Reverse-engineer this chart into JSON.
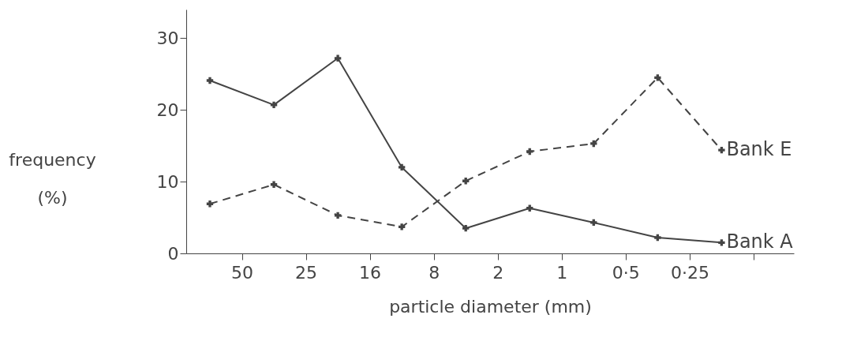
{
  "chart_data": {
    "type": "line",
    "xlabel": "particle diameter (mm)",
    "ylabel": "frequency (%)",
    "categories": [
      null,
      "50",
      null,
      "25",
      null,
      "16",
      null,
      "8",
      null,
      "2",
      null,
      "1",
      null,
      "0·5",
      null,
      "0·25",
      null,
      null
    ],
    "ylim": [
      0,
      34
    ],
    "yticks": [
      0,
      10,
      20,
      30
    ],
    "grid": false,
    "legend": "right",
    "marker": "cross",
    "series": [
      {
        "name": "Bank A",
        "color": "#444444",
        "line_style": "solid",
        "values": [
          24.1,
          null,
          20.7,
          null,
          27.2,
          null,
          12.0,
          null,
          3.5,
          null,
          6.3,
          null,
          4.3,
          null,
          2.2,
          null,
          1.5,
          null
        ]
      },
      {
        "name": "Bank E",
        "color": "#444444",
        "line_style": "dashed",
        "values": [
          6.9,
          null,
          9.6,
          null,
          5.3,
          null,
          3.7,
          null,
          10.1,
          null,
          14.2,
          null,
          15.3,
          null,
          24.5,
          null,
          14.4,
          null
        ]
      }
    ]
  }
}
